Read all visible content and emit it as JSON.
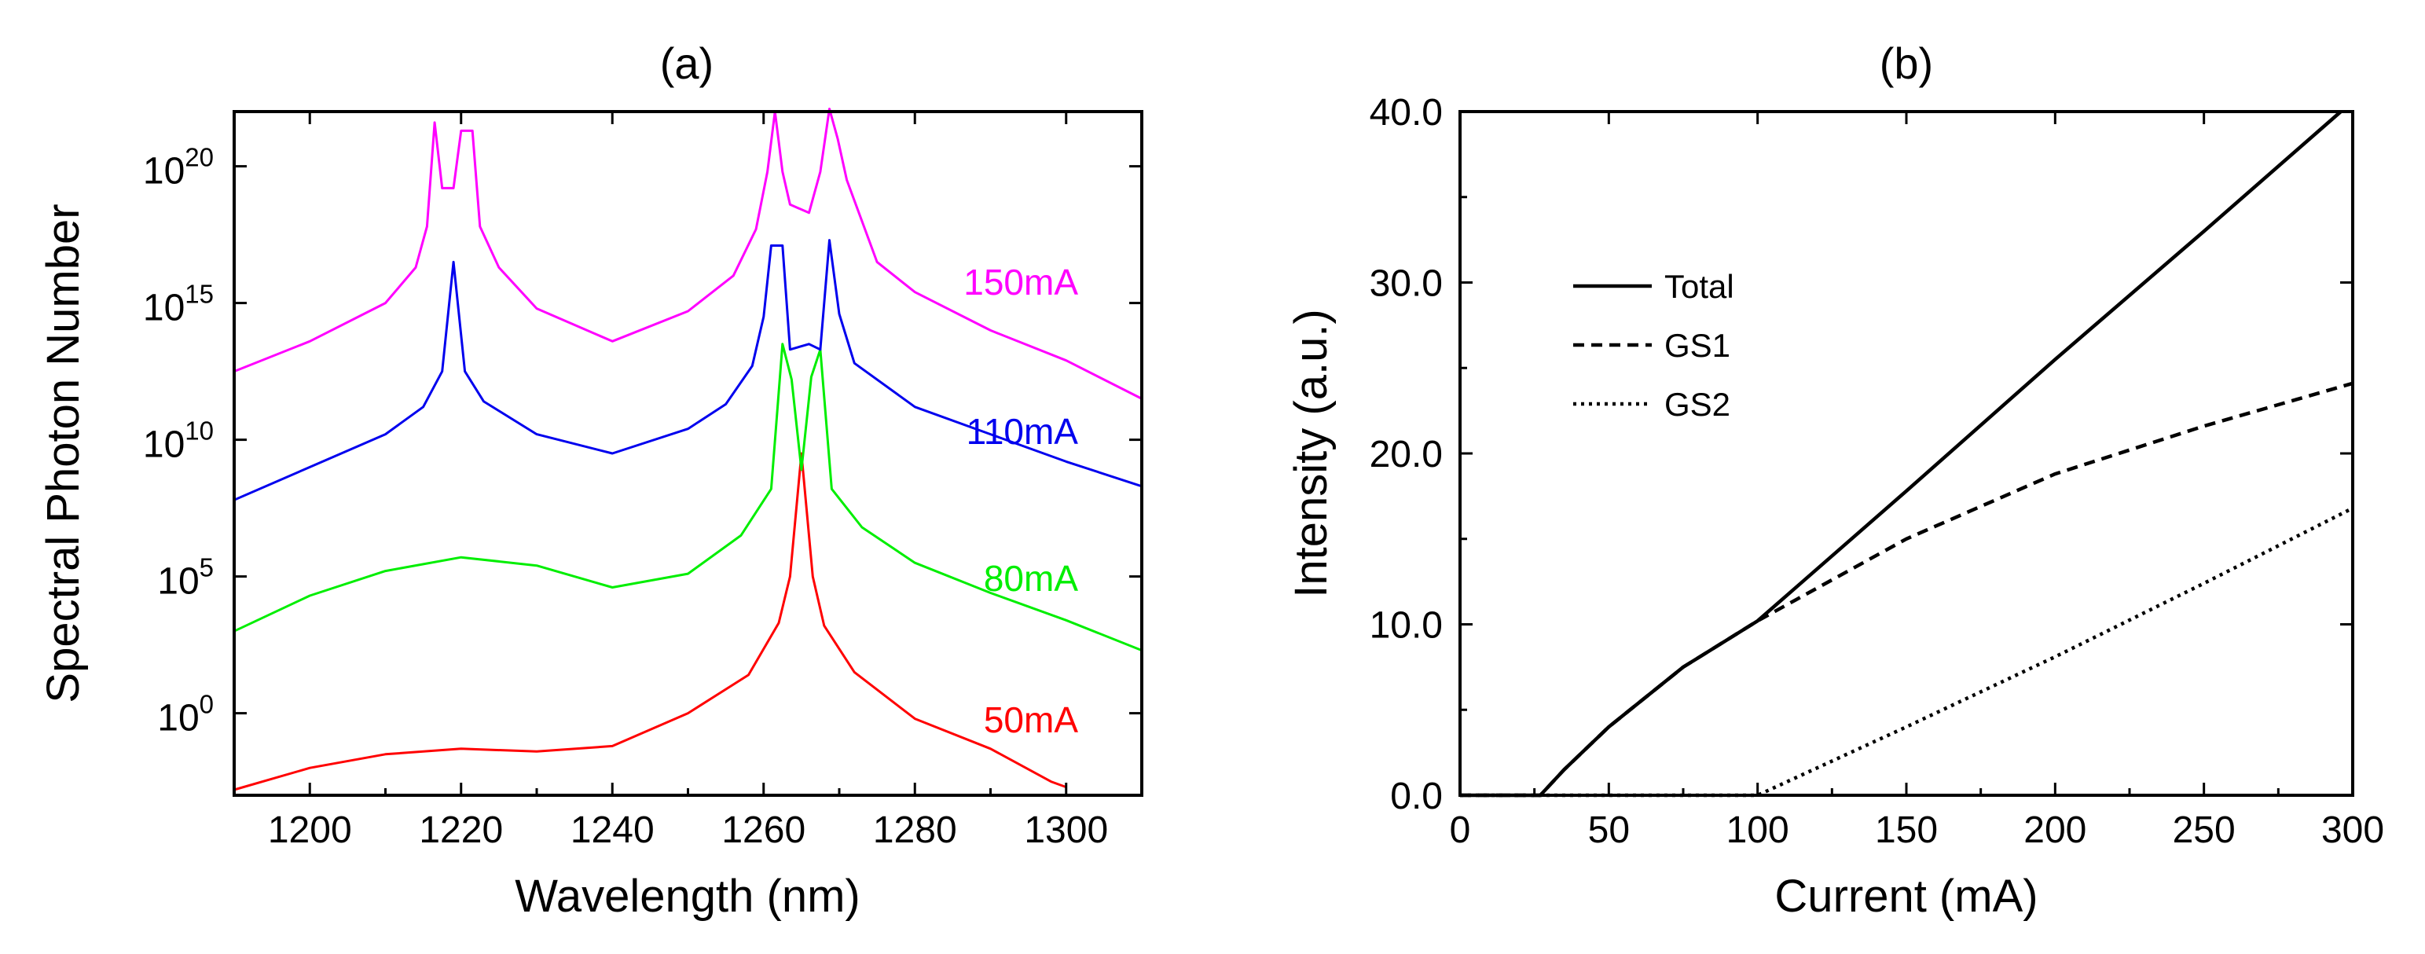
{
  "chart_data": [
    {
      "panel": "a",
      "type": "line",
      "title": "(a)",
      "xlabel": "Wavelength (nm)",
      "ylabel": "Spectral Photon Number",
      "yscale": "log",
      "xlim": [
        1190,
        1310
      ],
      "ylim_log10": [
        -3,
        22
      ],
      "grid": false,
      "xticks": [
        1200,
        1220,
        1240,
        1260,
        1280,
        1300
      ],
      "xtick_labels": [
        "1200",
        "1220",
        "1240",
        "1260",
        "1280",
        "1300"
      ],
      "yticks_log10": [
        0,
        5,
        10,
        15,
        20
      ],
      "ytick_base": "10",
      "ytick_exponents": [
        "0",
        "5",
        "10",
        "15",
        "20"
      ],
      "series": [
        {
          "name": "50mA",
          "label": "50mA",
          "color": "#ff0000",
          "points_log10": [
            [
              1190,
              -2.8
            ],
            [
              1200,
              -2.0
            ],
            [
              1210,
              -1.5
            ],
            [
              1220,
              -1.3
            ],
            [
              1230,
              -1.4
            ],
            [
              1240,
              -1.2
            ],
            [
              1250,
              0.0
            ],
            [
              1258,
              1.4
            ],
            [
              1262,
              3.3
            ],
            [
              1263.5,
              5.0
            ],
            [
              1265,
              9.5
            ],
            [
              1266.5,
              5.0
            ],
            [
              1268,
              3.2
            ],
            [
              1272,
              1.5
            ],
            [
              1280,
              -0.2
            ],
            [
              1290,
              -1.3
            ],
            [
              1298,
              -2.5
            ],
            [
              1300,
              -2.7
            ]
          ]
        },
        {
          "name": "80mA",
          "label": "80mA",
          "color": "#00ee00",
          "points_log10": [
            [
              1190,
              3.0
            ],
            [
              1200,
              4.3
            ],
            [
              1210,
              5.2
            ],
            [
              1220,
              5.7
            ],
            [
              1230,
              5.4
            ],
            [
              1240,
              4.6
            ],
            [
              1250,
              5.1
            ],
            [
              1257,
              6.5
            ],
            [
              1261,
              8.2
            ],
            [
              1262.5,
              13.5
            ],
            [
              1263.7,
              12.2
            ],
            [
              1265,
              8.9
            ],
            [
              1266.3,
              12.3
            ],
            [
              1267.5,
              13.3
            ],
            [
              1269,
              8.2
            ],
            [
              1273,
              6.8
            ],
            [
              1280,
              5.5
            ],
            [
              1290,
              4.4
            ],
            [
              1300,
              3.4
            ],
            [
              1310,
              2.3
            ]
          ]
        },
        {
          "name": "110mA",
          "label": "110mA",
          "color": "#0000ee",
          "points_log10": [
            [
              1190,
              7.8
            ],
            [
              1200,
              9.0
            ],
            [
              1210,
              10.2
            ],
            [
              1215,
              11.2
            ],
            [
              1217.5,
              12.5
            ],
            [
              1219,
              16.5
            ],
            [
              1220.5,
              12.5
            ],
            [
              1223,
              11.4
            ],
            [
              1230,
              10.2
            ],
            [
              1240,
              9.5
            ],
            [
              1250,
              10.4
            ],
            [
              1255,
              11.3
            ],
            [
              1258.5,
              12.7
            ],
            [
              1260,
              14.5
            ],
            [
              1261,
              17.1
            ],
            [
              1262.5,
              17.1
            ],
            [
              1263.5,
              13.3
            ],
            [
              1266,
              13.5
            ],
            [
              1267.5,
              13.3
            ],
            [
              1268.7,
              17.3
            ],
            [
              1270,
              14.6
            ],
            [
              1272,
              12.8
            ],
            [
              1280,
              11.2
            ],
            [
              1290,
              10.2
            ],
            [
              1300,
              9.2
            ],
            [
              1310,
              8.3
            ]
          ]
        },
        {
          "name": "150mA",
          "label": "150mA",
          "color": "#ff00ff",
          "points_log10": [
            [
              1190,
              12.5
            ],
            [
              1200,
              13.6
            ],
            [
              1210,
              15.0
            ],
            [
              1214,
              16.3
            ],
            [
              1215.5,
              17.8
            ],
            [
              1216.5,
              21.6
            ],
            [
              1217.5,
              19.2
            ],
            [
              1219,
              19.2
            ],
            [
              1220,
              21.3
            ],
            [
              1221.5,
              21.3
            ],
            [
              1222.5,
              17.8
            ],
            [
              1225,
              16.3
            ],
            [
              1230,
              14.8
            ],
            [
              1240,
              13.6
            ],
            [
              1250,
              14.7
            ],
            [
              1256,
              16.0
            ],
            [
              1259,
              17.7
            ],
            [
              1260.5,
              19.8
            ],
            [
              1261.5,
              22.0
            ],
            [
              1262.5,
              19.8
            ],
            [
              1263.5,
              18.6
            ],
            [
              1266,
              18.3
            ],
            [
              1267.5,
              19.8
            ],
            [
              1268.7,
              22.1
            ],
            [
              1269.8,
              21.0
            ],
            [
              1271,
              19.5
            ],
            [
              1275,
              16.5
            ],
            [
              1280,
              15.4
            ],
            [
              1290,
              14.0
            ],
            [
              1300,
              12.9
            ],
            [
              1310,
              11.5
            ]
          ]
        }
      ]
    },
    {
      "panel": "b",
      "type": "line",
      "title": "(b)",
      "xlabel": "Current (mA)",
      "ylabel": "Intensity (a.u.)",
      "xlim": [
        0,
        300
      ],
      "ylim": [
        0,
        40
      ],
      "grid": false,
      "xticks": [
        0,
        50,
        100,
        150,
        200,
        250,
        300
      ],
      "xtick_labels": [
        "0",
        "50",
        "100",
        "150",
        "200",
        "250",
        "300"
      ],
      "yticks": [
        0,
        10,
        20,
        30,
        40
      ],
      "ytick_labels": [
        "0.0",
        "10.0",
        "20.0",
        "30.0",
        "40.0"
      ],
      "legend_position": "upper-left",
      "series": [
        {
          "name": "Total",
          "style": "solid",
          "color": "#000000",
          "points": [
            [
              0,
              0
            ],
            [
              27,
              0
            ],
            [
              35,
              1.5
            ],
            [
              50,
              4.0
            ],
            [
              75,
              7.5
            ],
            [
              100,
              10.2
            ],
            [
              150,
              17.8
            ],
            [
              200,
              25.5
            ],
            [
              250,
              33.0
            ],
            [
              296,
              40.0
            ]
          ]
        },
        {
          "name": "GS1",
          "style": "dashed",
          "color": "#000000",
          "points": [
            [
              0,
              0
            ],
            [
              27,
              0
            ],
            [
              35,
              1.5
            ],
            [
              50,
              4.0
            ],
            [
              75,
              7.5
            ],
            [
              100,
              10.2
            ],
            [
              150,
              15.0
            ],
            [
              200,
              18.8
            ],
            [
              250,
              21.6
            ],
            [
              300,
              24.1
            ]
          ]
        },
        {
          "name": "GS2",
          "style": "dotted",
          "color": "#000000",
          "points": [
            [
              0,
              0
            ],
            [
              100,
              0
            ],
            [
              150,
              4.0
            ],
            [
              200,
              8.1
            ],
            [
              250,
              12.4
            ],
            [
              300,
              16.8
            ]
          ]
        }
      ]
    }
  ]
}
